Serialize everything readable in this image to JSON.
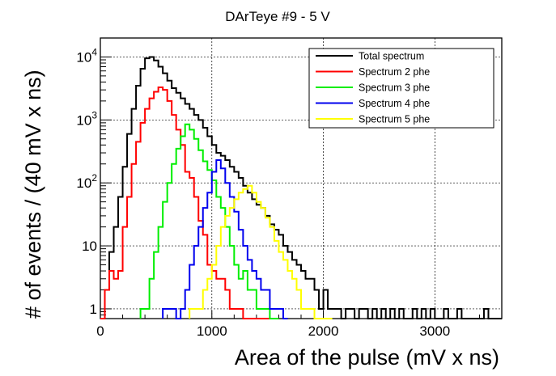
{
  "chart_data": {
    "type": "line",
    "subtype": "step-histogram",
    "title": "DArTeye #9 - 5 V",
    "xlabel": "Area of the pulse (mV x ns)",
    "ylabel": "# of events / (40 mV x ns)",
    "xlim": [
      0,
      3600
    ],
    "ylim": [
      0.7,
      20000
    ],
    "yscale": "log",
    "grid": true,
    "bin_width": 40,
    "legend_position": "top-right",
    "x_ticks": [
      0,
      1000,
      2000,
      3000
    ],
    "x_tick_labels": [
      "0",
      "1000",
      "2000",
      "3000"
    ],
    "y_ticks": [
      1,
      10,
      100,
      1000,
      10000
    ],
    "y_tick_labels": [
      {
        "base": "1",
        "exp": ""
      },
      {
        "base": "10",
        "exp": ""
      },
      {
        "base": "10",
        "exp": "2"
      },
      {
        "base": "10",
        "exp": "3"
      },
      {
        "base": "10",
        "exp": "4"
      }
    ],
    "series": [
      {
        "name": "Total spectrum",
        "color": "#000000",
        "x": [
          0,
          40,
          80,
          120,
          160,
          200,
          240,
          280,
          320,
          360,
          400,
          440,
          480,
          520,
          560,
          600,
          640,
          680,
          720,
          760,
          800,
          840,
          880,
          920,
          960,
          1000,
          1040,
          1080,
          1120,
          1160,
          1200,
          1240,
          1280,
          1320,
          1360,
          1400,
          1440,
          1480,
          1520,
          1560,
          1600,
          1640,
          1680,
          1720,
          1760,
          1800,
          1840,
          1880,
          1920,
          1960,
          2000,
          2040,
          2080,
          2120,
          2160,
          2200,
          2240,
          2280,
          2320,
          2360,
          2400,
          2440,
          2480,
          2520,
          2560,
          2600,
          2640,
          2680,
          2720,
          2760,
          2800,
          2840,
          2880,
          2920,
          2960,
          3000,
          3040,
          3080,
          3120,
          3160,
          3200,
          3240,
          3280,
          3320,
          3360,
          3400,
          3440,
          3480,
          3520,
          3560
        ],
        "values": [
          0,
          2,
          8,
          20,
          60,
          180,
          600,
          1500,
          3500,
          6500,
          9500,
          10000,
          8800,
          7000,
          5500,
          4200,
          3200,
          2700,
          2200,
          1800,
          1500,
          1200,
          1000,
          750,
          550,
          400,
          300,
          270,
          230,
          180,
          150,
          120,
          90,
          70,
          55,
          45,
          40,
          30,
          22,
          18,
          15,
          10,
          8,
          6,
          5,
          4,
          3,
          3,
          2,
          1,
          2,
          1,
          1,
          1,
          0,
          1,
          1,
          0,
          1,
          1,
          0,
          1,
          0,
          1,
          0,
          1,
          0,
          1,
          0,
          0,
          1,
          0,
          1,
          0,
          1,
          0,
          0,
          1,
          0,
          0,
          1,
          0,
          0,
          0,
          0,
          0,
          1,
          0,
          0,
          0
        ]
      },
      {
        "name": "Spectrum 2 phe",
        "color": "#ff0000",
        "x": [
          0,
          40,
          80,
          120,
          160,
          200,
          240,
          280,
          320,
          360,
          400,
          440,
          480,
          520,
          560,
          600,
          640,
          680,
          720,
          760,
          800,
          840,
          880,
          920,
          960,
          1000,
          1040,
          1080,
          1120,
          1160,
          1200,
          1240,
          1280,
          1320,
          1360,
          1400,
          1440,
          1480,
          1520,
          1560
        ],
        "values": [
          0,
          2,
          4,
          3,
          4,
          20,
          60,
          200,
          450,
          900,
          1500,
          2200,
          2800,
          3300,
          3000,
          2000,
          1200,
          700,
          400,
          150,
          120,
          60,
          25,
          15,
          5,
          4,
          3,
          3,
          2,
          1,
          1,
          1,
          0,
          0,
          0,
          0,
          0,
          0,
          0,
          0
        ]
      },
      {
        "name": "Spectrum 3 phe",
        "color": "#00ee00",
        "x": [
          360,
          400,
          440,
          480,
          520,
          560,
          600,
          640,
          680,
          720,
          760,
          800,
          840,
          880,
          920,
          960,
          1000,
          1040,
          1080,
          1120,
          1160,
          1200,
          1240,
          1280,
          1320,
          1360,
          1400,
          1440,
          1480,
          1520,
          1560
        ],
        "values": [
          1,
          1,
          3,
          8,
          20,
          50,
          100,
          200,
          350,
          550,
          850,
          700,
          500,
          330,
          220,
          160,
          110,
          60,
          40,
          20,
          10,
          5,
          3,
          4,
          2,
          2,
          1,
          1,
          1,
          0,
          0
        ]
      },
      {
        "name": "Spectrum 4 phe",
        "color": "#0000ee",
        "x": [
          560,
          600,
          640,
          680,
          720,
          760,
          800,
          840,
          880,
          920,
          960,
          1000,
          1040,
          1080,
          1120,
          1160,
          1200,
          1240,
          1280,
          1320,
          1360,
          1400,
          1440,
          1480,
          1520,
          1560,
          1600,
          1640
        ],
        "values": [
          1,
          1,
          1,
          0,
          1,
          2,
          5,
          10,
          20,
          40,
          70,
          150,
          230,
          170,
          100,
          60,
          35,
          18,
          10,
          6,
          4,
          3,
          2,
          2,
          1,
          1,
          1,
          0
        ]
      },
      {
        "name": "Spectrum 5 phe",
        "color": "#ffff00",
        "x": [
          800,
          840,
          880,
          920,
          960,
          1000,
          1040,
          1080,
          1120,
          1160,
          1200,
          1240,
          1280,
          1320,
          1360,
          1400,
          1440,
          1480,
          1520,
          1560,
          1600,
          1640,
          1680,
          1720,
          1760,
          1800,
          1840,
          1880,
          1920,
          1960,
          2000,
          2040
        ],
        "values": [
          1,
          1,
          1,
          2,
          3,
          5,
          10,
          20,
          30,
          40,
          55,
          70,
          80,
          90,
          70,
          50,
          40,
          28,
          20,
          12,
          8,
          6,
          4,
          3,
          2,
          1,
          1,
          1,
          0,
          0,
          0,
          0
        ]
      }
    ]
  }
}
